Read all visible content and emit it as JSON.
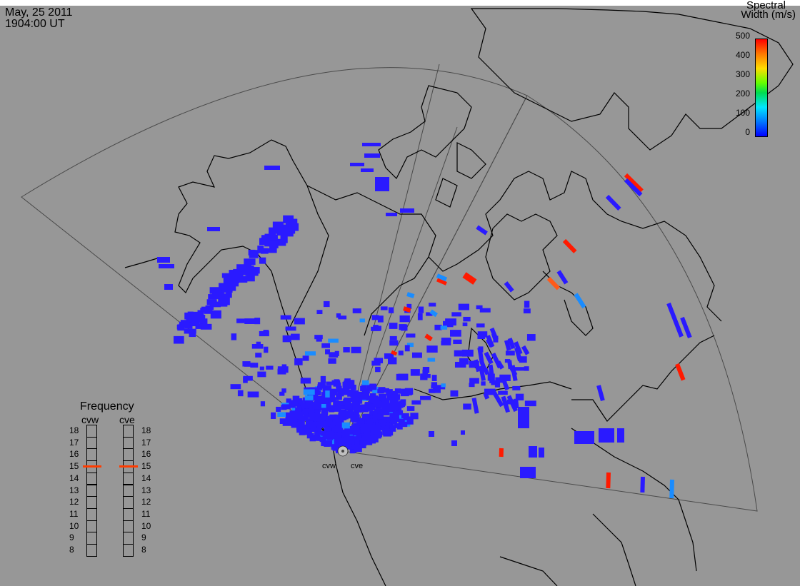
{
  "header": {
    "date": "May, 25 2011",
    "time": "1904:00 UT"
  },
  "colorbar": {
    "title_line1": "Spectral",
    "title_line2": "Width (m/s)",
    "ticks": [
      "500",
      "400",
      "300",
      "200",
      "100",
      "0"
    ],
    "range": [
      0,
      500
    ],
    "colors": [
      "#0000ff",
      "#0078ff",
      "#00e6ff",
      "#00dc50",
      "#64ff00",
      "#ffdc00",
      "#ff7800",
      "#ff0000"
    ]
  },
  "frequency": {
    "title": "Frequency",
    "radar_left": "cvw",
    "radar_right": "cve",
    "levels": [
      "18",
      "17",
      "16",
      "15",
      "14",
      "13",
      "12",
      "11",
      "10",
      "9",
      "8"
    ],
    "selected_left": 15,
    "selected_right": 15
  },
  "radars": {
    "left_label": "cvw",
    "right_label": "cve"
  },
  "colors": {
    "background": "#979797",
    "coast": "#000000",
    "fov": "#555555",
    "low_width": "#2a1aff",
    "mid_width": "#1a8cff",
    "high_width": "#ff1a00"
  }
}
